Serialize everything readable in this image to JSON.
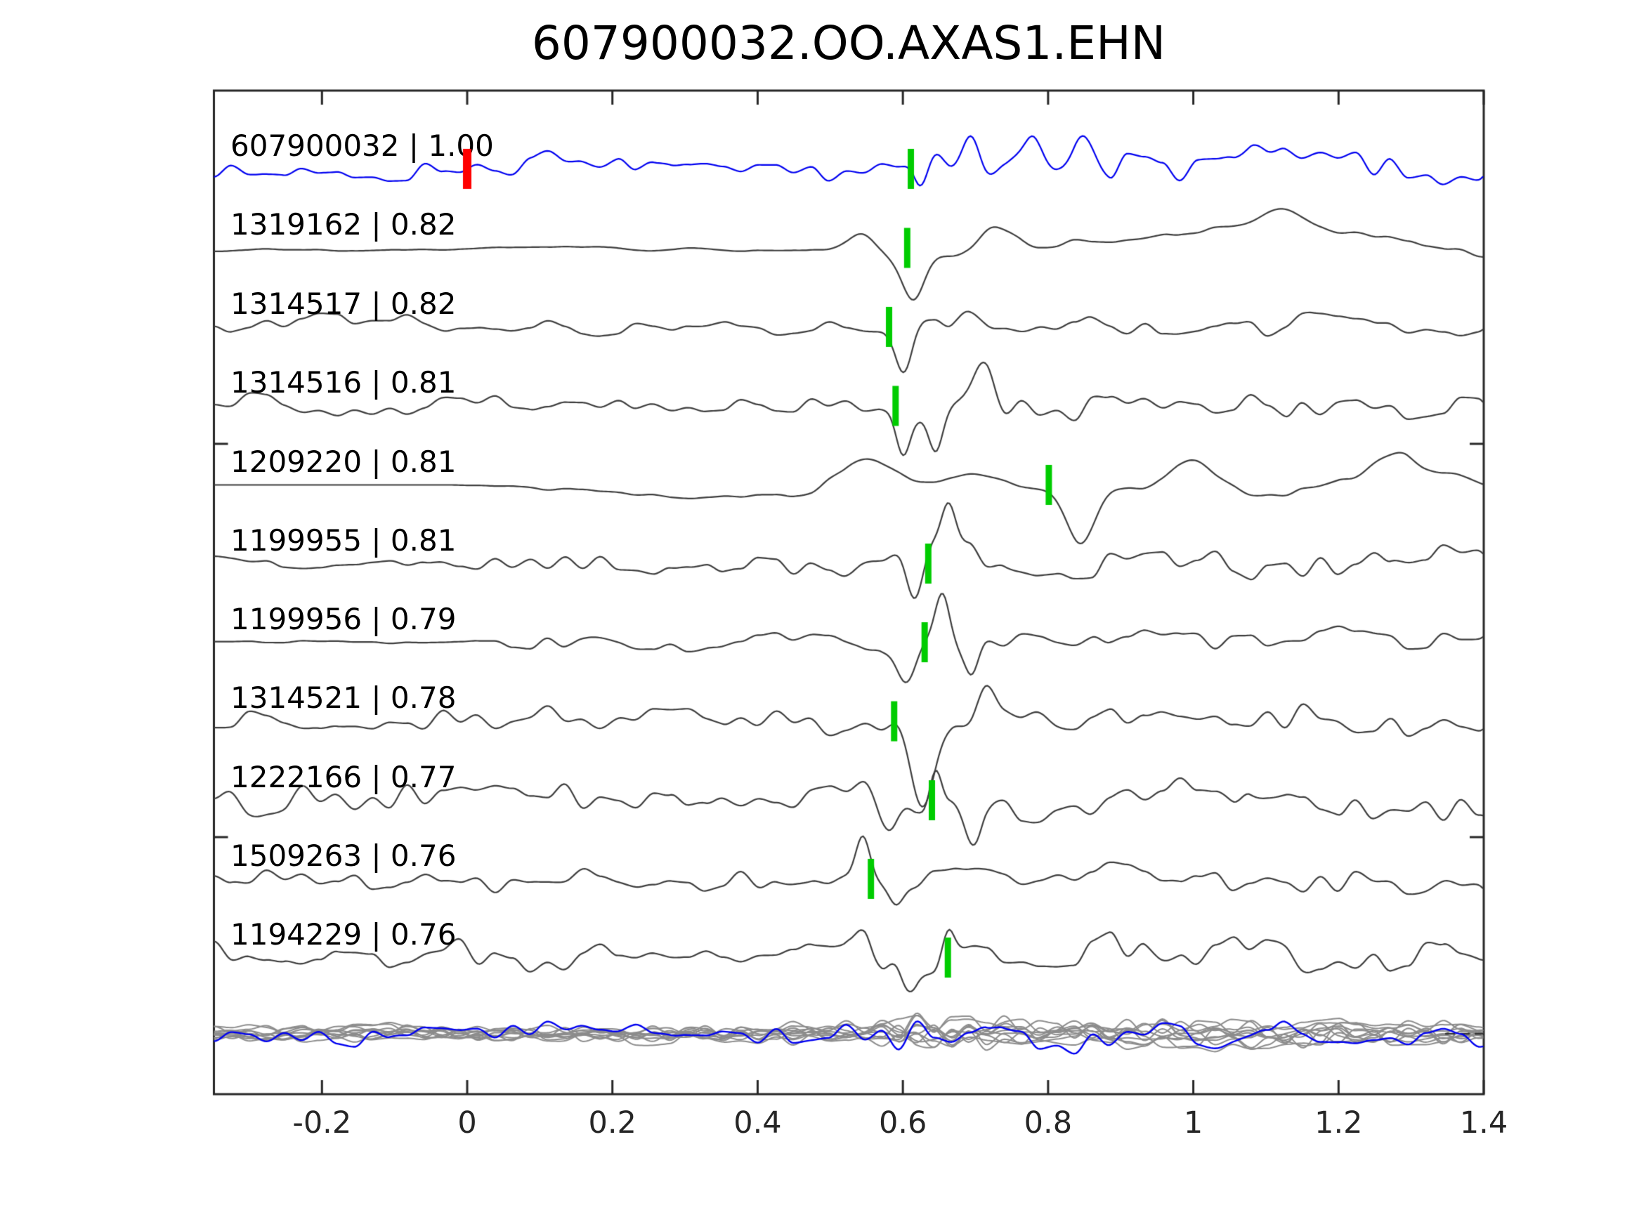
{
  "title": "607900032.OO.AXAS1.EHN",
  "colors": {
    "template_trace": "#0000f0",
    "detection_trace": "#3d3d3d",
    "overlay_gray": "#8c8c8c",
    "overlay_blue": "#0000f0",
    "pick_marker": "#00cc00",
    "template_marker": "#ff0000",
    "axis": "#262626",
    "text": "#000000",
    "background": "#ffffff"
  },
  "chart_data": {
    "type": "line",
    "title": "607900032.OO.AXAS1.EHN",
    "xlabel": "",
    "ylabel": "",
    "xlim": [
      -0.35,
      1.4
    ],
    "grid": false,
    "legend": "none",
    "x_ticks": [
      -0.2,
      0,
      0.2,
      0.4,
      0.6,
      0.8,
      1,
      1.2,
      1.4
    ],
    "x_tick_labels": [
      "-0.2",
      "0",
      "0.2",
      "0.4",
      "0.6",
      "0.8",
      "1",
      "1.2",
      "1.4"
    ],
    "template_marker": {
      "trace_index": 0,
      "x": 0.0,
      "color": "#ff0000"
    },
    "traces": [
      {
        "id": "607900032",
        "correlation": "1.00",
        "label": "607900032 | 1.00",
        "color": "#0000f0",
        "pick_x": 0.611,
        "synth": {
          "seed": 7,
          "w": [
            6,
            10,
            13
          ],
          "env": [
            [
              -0.35,
              1
            ],
            [
              0.55,
              1
            ],
            [
              0.67,
              1.7
            ],
            [
              1.4,
              1.5
            ]
          ],
          "pulses": [
            [
              0.625,
              10,
              -40
            ],
            [
              0.695,
              13,
              48
            ],
            [
              0.85,
              16,
              62
            ],
            [
              0.78,
              10,
              30
            ],
            [
              1.1,
              14,
              35
            ]
          ]
        }
      },
      {
        "id": "1319162",
        "correlation": "0.82",
        "label": "1319162 | 0.82",
        "color": "#3d3d3d",
        "pick_x": 0.606,
        "synth": {
          "seed": 23,
          "w": [
            9,
            4,
            1.2
          ],
          "env": [
            [
              -0.35,
              0.5
            ],
            [
              0.45,
              0.75
            ],
            [
              0.6,
              2.6
            ],
            [
              1.4,
              2.6
            ]
          ],
          "pulses": [
            [
              0.615,
              15,
              -62
            ],
            [
              0.545,
              20,
              28
            ],
            [
              0.73,
              26,
              42
            ],
            [
              1.12,
              30,
              30
            ]
          ]
        }
      },
      {
        "id": "1314517",
        "correlation": "0.82",
        "label": "1314517 | 0.82",
        "color": "#3d3d3d",
        "pick_x": 0.581,
        "synth": {
          "seed": 37,
          "w": [
            5,
            9,
            8
          ],
          "env": [
            [
              -0.35,
              1
            ],
            [
              0.55,
              1
            ],
            [
              0.66,
              1.5
            ],
            [
              1.4,
              1.45
            ]
          ],
          "pulses": [
            [
              0.603,
              12,
              -58
            ],
            [
              0.69,
              16,
              32
            ]
          ]
        }
      },
      {
        "id": "1314516",
        "correlation": "0.81",
        "label": "1314516 | 0.81",
        "color": "#3d3d3d",
        "pick_x": 0.59,
        "synth": {
          "seed": 41,
          "w": [
            6,
            10,
            10
          ],
          "env": [
            [
              -0.35,
              1
            ],
            [
              0.55,
              1
            ],
            [
              0.68,
              1.55
            ],
            [
              1.4,
              1.5
            ]
          ],
          "pulses": [
            [
              0.6,
              10,
              -66
            ],
            [
              0.645,
              10,
              -62
            ],
            [
              0.71,
              14,
              40
            ]
          ]
        }
      },
      {
        "id": "1209220",
        "correlation": "0.81",
        "label": "1209220 | 0.81",
        "color": "#3d3d3d",
        "pick_x": 0.801,
        "synth": {
          "seed": 59,
          "w": [
            14,
            8,
            2.5
          ],
          "env": [
            [
              -0.35,
              0
            ],
            [
              -0.02,
              0
            ],
            [
              0.1,
              0.8
            ],
            [
              0.3,
              1.1
            ],
            [
              0.55,
              1.5
            ],
            [
              1.4,
              1.55
            ]
          ],
          "pulses": [
            [
              0.55,
              35,
              45
            ],
            [
              0.845,
              20,
              -80
            ],
            [
              1.0,
              30,
              38
            ],
            [
              1.28,
              26,
              36
            ]
          ]
        }
      },
      {
        "id": "1199955",
        "correlation": "0.81",
        "label": "1199955 | 0.81",
        "color": "#3d3d3d",
        "pick_x": 0.635,
        "synth": {
          "seed": 67,
          "w": [
            6,
            11,
            11
          ],
          "env": [
            [
              -0.35,
              0.45
            ],
            [
              -0.1,
              0.5
            ],
            [
              0.02,
              1
            ],
            [
              0.55,
              1.05
            ],
            [
              0.66,
              1.5
            ],
            [
              1.4,
              1.4
            ]
          ],
          "pulses": [
            [
              0.615,
              11,
              -50
            ],
            [
              0.663,
              10,
              62
            ]
          ]
        }
      },
      {
        "id": "1199956",
        "correlation": "0.79",
        "label": "1199956 | 0.79",
        "color": "#3d3d3d",
        "pick_x": 0.63,
        "synth": {
          "seed": 73,
          "w": [
            7,
            11,
            10
          ],
          "env": [
            [
              -0.35,
              0.12
            ],
            [
              -0.03,
              0.15
            ],
            [
              0.06,
              1
            ],
            [
              0.55,
              1
            ],
            [
              0.66,
              1.45
            ],
            [
              1.4,
              1.4
            ]
          ],
          "pulses": [
            [
              0.603,
              13,
              -58
            ],
            [
              0.655,
              10,
              70
            ],
            [
              0.695,
              9,
              -26
            ]
          ]
        }
      },
      {
        "id": "1314521",
        "correlation": "0.78",
        "label": "1314521 | 0.78",
        "color": "#3d3d3d",
        "pick_x": 0.588,
        "synth": {
          "seed": 89,
          "w": [
            6,
            10,
            11
          ],
          "env": [
            [
              -0.35,
              0.9
            ],
            [
              0.55,
              1
            ],
            [
              0.7,
              1.5
            ],
            [
              1.4,
              1.5
            ]
          ],
          "pulses": [
            [
              0.627,
              16,
              -108
            ],
            [
              0.715,
              13,
              38
            ]
          ]
        }
      },
      {
        "id": "1222166",
        "correlation": "0.77",
        "label": "1222166 | 0.77",
        "color": "#3d3d3d",
        "pick_x": 0.64,
        "synth": {
          "seed": 97,
          "w": [
            8,
            16,
            15
          ],
          "env": [
            [
              -0.35,
              1.1
            ],
            [
              0.55,
              1.1
            ],
            [
              0.65,
              1.35
            ],
            [
              1.4,
              1.3
            ]
          ],
          "pulses": [
            [
              0.585,
              13,
              -54
            ],
            [
              0.645,
              9,
              80
            ],
            [
              0.7,
              11,
              -44
            ]
          ]
        }
      },
      {
        "id": "1509263",
        "correlation": "0.76",
        "label": "1509263 | 0.76",
        "color": "#3d3d3d",
        "pick_x": 0.556,
        "synth": {
          "seed": 101,
          "w": [
            6,
            11,
            12
          ],
          "env": [
            [
              -0.35,
              1
            ],
            [
              1.0,
              1.15
            ],
            [
              1.4,
              1.45
            ]
          ],
          "pulses": [
            [
              0.545,
              10,
              62
            ],
            [
              0.592,
              11,
              -38
            ]
          ]
        }
      },
      {
        "id": "1194229",
        "correlation": "0.76",
        "label": "1194229 | 0.76",
        "color": "#3d3d3d",
        "pick_x": 0.662,
        "synth": {
          "seed": 113,
          "w": [
            9,
            15,
            13
          ],
          "env": [
            [
              -0.35,
              1.2
            ],
            [
              0.5,
              1.25
            ],
            [
              0.7,
              1.5
            ],
            [
              1.4,
              1.45
            ]
          ],
          "pulses": [
            [
              0.545,
              11,
              54
            ],
            [
              0.605,
              12,
              -42
            ],
            [
              0.662,
              9,
              38
            ]
          ]
        }
      }
    ],
    "overlay": {
      "description": "all detection waveforms superimposed with template in blue",
      "n_gray": 11,
      "gray_color": "#8c8c8c",
      "blue_color": "#0000f0",
      "gray_synth": {
        "seed_base": 211,
        "w": [
          4,
          8,
          9
        ],
        "env": [
          [
            -0.35,
            0.85
          ],
          [
            0.5,
            0.95
          ],
          [
            0.63,
            2.0
          ],
          [
            0.8,
            1.45
          ],
          [
            1.4,
            1.3
          ]
        ]
      },
      "blue_synth": {
        "seed": 331,
        "w": [
          5,
          9,
          11
        ],
        "env": [
          [
            -0.35,
            0.9
          ],
          [
            0.5,
            1.0
          ],
          [
            0.63,
            1.9
          ],
          [
            0.8,
            1.4
          ],
          [
            1.4,
            1.3
          ]
        ]
      }
    }
  }
}
